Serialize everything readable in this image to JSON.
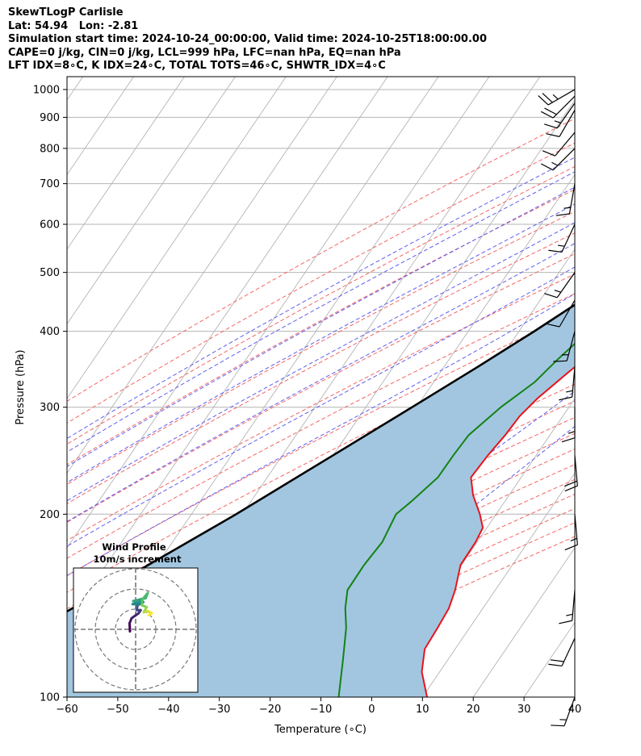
{
  "header": {
    "line1": "SkewTLogP Carlisle",
    "line2": "Lat: 54.94   Lon: -2.81",
    "line3": "Simulation start time: 2024-10-24_00:00:00, Valid time: 2024-10-25T18:00:00.00",
    "line4": "CAPE=0 j/kg, CIN=0 j/kg, LCL=999 hPa, LFC=nan hPa, EQ=nan hPa",
    "line5": "LFT IDX=8∘C, K IDX=24∘C, TOTAL TOTS=46∘C, SHWTR_IDX=4∘C"
  },
  "chart_data": {
    "type": "line",
    "xlabel": "Temperature (∘C)",
    "ylabel": "Pressure (hPa)",
    "xlim": [
      -60,
      40
    ],
    "ylim": [
      1050,
      100
    ],
    "y_scale": "log",
    "grid": true,
    "x_ticks": [
      -60,
      -50,
      -40,
      -30,
      -20,
      -10,
      0,
      10,
      20,
      30,
      40
    ],
    "y_ticks": [
      100,
      200,
      300,
      400,
      500,
      600,
      700,
      800,
      900,
      1000
    ],
    "series": [
      {
        "role": "temperature",
        "color": "#e8141c",
        "points": [
          [
            1000,
            12.5
          ],
          [
            980,
            14.5
          ],
          [
            950,
            15.7
          ],
          [
            900,
            15.7
          ],
          [
            850,
            14.3
          ],
          [
            800,
            12.6
          ],
          [
            750,
            11.7
          ],
          [
            700,
            10.6
          ],
          [
            650,
            9.7
          ],
          [
            600,
            8.4
          ],
          [
            550,
            7.0
          ],
          [
            500,
            5.1
          ],
          [
            450,
            2.3
          ],
          [
            400,
            -0.5
          ],
          [
            370,
            -2.6
          ],
          [
            340,
            -5.0
          ],
          [
            310,
            -7.4
          ],
          [
            290,
            -8.5
          ],
          [
            270,
            -8.8
          ],
          [
            250,
            -9.5
          ],
          [
            230,
            -9.9
          ],
          [
            215,
            -7.1
          ],
          [
            200,
            -3.2
          ],
          [
            190,
            -0.8
          ],
          [
            180,
            -0.3
          ],
          [
            165,
            -0.2
          ],
          [
            150,
            2.1
          ],
          [
            140,
            3.3
          ],
          [
            130,
            3.7
          ],
          [
            120,
            4.0
          ],
          [
            110,
            6.5
          ],
          [
            100,
            10.9
          ]
        ]
      },
      {
        "role": "dewpoint",
        "color": "#138213",
        "points": [
          [
            1000,
            12.2
          ],
          [
            950,
            12.1
          ],
          [
            900,
            10.6
          ],
          [
            850,
            8.1
          ],
          [
            800,
            4.0
          ],
          [
            770,
            2.3
          ],
          [
            740,
            1.8
          ],
          [
            700,
            3.5
          ],
          [
            650,
            5.8
          ],
          [
            600,
            4.0
          ],
          [
            550,
            0.0
          ],
          [
            520,
            -3.1
          ],
          [
            500,
            -5.1
          ],
          [
            460,
            -4.7
          ],
          [
            420,
            -4.7
          ],
          [
            390,
            -6.9
          ],
          [
            360,
            -8.6
          ],
          [
            330,
            -10.1
          ],
          [
            300,
            -13.4
          ],
          [
            270,
            -16.0
          ],
          [
            250,
            -16.3
          ],
          [
            230,
            -16.4
          ],
          [
            210,
            -18.4
          ],
          [
            200,
            -19.7
          ],
          [
            180,
            -18.7
          ],
          [
            165,
            -19.2
          ],
          [
            150,
            -19.1
          ],
          [
            140,
            -17.1
          ],
          [
            130,
            -14.3
          ],
          [
            115,
            -10.6
          ],
          [
            100,
            -6.5
          ]
        ]
      },
      {
        "role": "parcel",
        "color": "#000000",
        "points": [
          [
            1000,
            12.2
          ],
          [
            950,
            12.0
          ],
          [
            900,
            11.0
          ],
          [
            850,
            9.7
          ],
          [
            800,
            8.4
          ],
          [
            750,
            6.9
          ],
          [
            700,
            4.6
          ],
          [
            650,
            2.3
          ],
          [
            600,
            -0.6
          ],
          [
            550,
            -3.7
          ],
          [
            500,
            -7.4
          ],
          [
            450,
            -11.8
          ],
          [
            400,
            -17.0
          ],
          [
            350,
            -23.3
          ],
          [
            300,
            -30.9
          ],
          [
            250,
            -40.0
          ],
          [
            200,
            -51.2
          ],
          [
            150,
            -66.9
          ],
          [
            100,
            -90.0
          ]
        ]
      }
    ],
    "shading": {
      "between": [
        "temperature",
        "parcel"
      ],
      "color": "#a2c6e0"
    },
    "background_lines": {
      "isotherm_color": "#b4b4b4",
      "dry_adiabat_color": "#f46565",
      "moist_adiabat_color": "#5f5ff0",
      "mixing_ratio_color": "#9a4fd3"
    },
    "wind_barbs": [
      {
        "p": 1000,
        "speed_kt": 25,
        "dir": 240
      },
      {
        "p": 975,
        "speed_kt": 20,
        "dir": 225
      },
      {
        "p": 950,
        "speed_kt": 15,
        "dir": 215
      },
      {
        "p": 925,
        "speed_kt": 10,
        "dir": 210
      },
      {
        "p": 850,
        "speed_kt": 10,
        "dir": 220
      },
      {
        "p": 800,
        "speed_kt": 15,
        "dir": 225
      },
      {
        "p": 700,
        "speed_kt": 15,
        "dir": 190
      },
      {
        "p": 600,
        "speed_kt": 15,
        "dir": 205
      },
      {
        "p": 500,
        "speed_kt": 15,
        "dir": 215
      },
      {
        "p": 450,
        "speed_kt": 10,
        "dir": 210
      },
      {
        "p": 400,
        "speed_kt": 15,
        "dir": 195
      },
      {
        "p": 350,
        "speed_kt": 15,
        "dir": 185
      },
      {
        "p": 300,
        "speed_kt": 15,
        "dir": 180
      },
      {
        "p": 250,
        "speed_kt": 20,
        "dir": 175
      },
      {
        "p": 200,
        "speed_kt": 15,
        "dir": 175
      },
      {
        "p": 150,
        "speed_kt": 15,
        "dir": 185
      },
      {
        "p": 125,
        "speed_kt": 20,
        "dir": 205
      },
      {
        "p": 100,
        "speed_kt": 15,
        "dir": 200
      }
    ]
  },
  "inset": {
    "title": "Wind Profile",
    "subtitle": "10m/s increment",
    "rings_ms": [
      10,
      20,
      30
    ],
    "colormap": [
      "#440154",
      "#3b528b",
      "#21918c",
      "#5ec962",
      "#fde725"
    ],
    "hodograph": [
      [
        -2.8,
        -1.0
      ],
      [
        -3.0,
        3.0
      ],
      [
        -2.0,
        5.5
      ],
      [
        1.5,
        8.0
      ],
      [
        2.5,
        9.5
      ],
      [
        0.5,
        9.5
      ],
      [
        1.0,
        12.0
      ],
      [
        3.8,
        13.5
      ],
      [
        2.0,
        12.5
      ],
      [
        -1.5,
        12.5
      ],
      [
        2.5,
        13.8
      ],
      [
        -1.2,
        14.0
      ],
      [
        5.0,
        15.5
      ],
      [
        6.0,
        18.0
      ],
      [
        3.5,
        15.0
      ],
      [
        3.0,
        12.0
      ],
      [
        5.5,
        11.0
      ],
      [
        4.0,
        8.5
      ],
      [
        6.0,
        9.0
      ],
      [
        8.0,
        8.0
      ],
      [
        6.5,
        7.0
      ]
    ]
  }
}
